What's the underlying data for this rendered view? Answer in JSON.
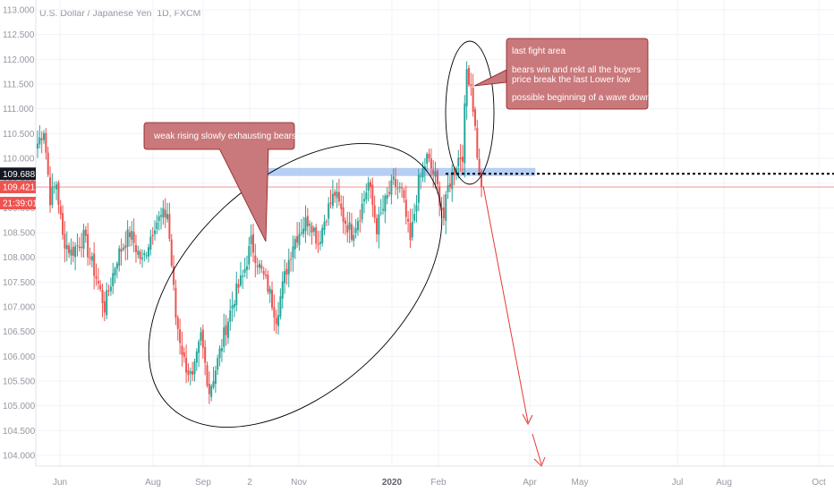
{
  "chart_title": "U.S. Dollar / Japanese Yen, 1D, FXCM",
  "price_badges": [
    {
      "label": "109.688",
      "bg": "#131722",
      "fg": "#ffffff"
    },
    {
      "label": "109.421",
      "bg": "#ef5350",
      "fg": "#ffffff"
    },
    {
      "label": "21:39:01",
      "bg": "#ef5350",
      "fg": "#ffffff"
    }
  ],
  "annotations": {
    "left_callout": "weak rising slowly exhausting bears",
    "right_callout": [
      "last fight area",
      "bears win and rekt all the buyers",
      "price break the last Lower low",
      "possible beginning of a wave down"
    ]
  },
  "colors": {
    "up": "#26a69a",
    "down": "#ef5350",
    "callout_fill": "#c9787b",
    "callout_stroke": "#8b1a1a",
    "zone": "#90b8f0",
    "arrow": "#e53935"
  },
  "chart_data": {
    "type": "candlestick",
    "title": "U.S. Dollar / Japanese Yen, 1D, FXCM",
    "y_ticks": [
      "104.000",
      "104.500",
      "105.000",
      "105.500",
      "106.000",
      "106.500",
      "107.000",
      "107.500",
      "108.000",
      "108.500",
      "109.000",
      "109.500",
      "110.000",
      "110.500",
      "111.000",
      "111.500",
      "112.000",
      "112.500",
      "113.000"
    ],
    "y_tick_values": [
      104.0,
      104.5,
      105.0,
      105.5,
      106.0,
      106.5,
      107.0,
      107.5,
      108.0,
      108.5,
      109.0,
      109.5,
      110.0,
      110.5,
      111.0,
      111.5,
      112.0,
      112.5,
      113.0
    ],
    "ylim": [
      103.7,
      113.3
    ],
    "x_ticks": [
      "Jun",
      "Aug",
      "Sep",
      "2",
      "Nov",
      "2020",
      "Feb",
      "Apr",
      "May",
      "Jul",
      "Aug",
      "Oct"
    ],
    "x_tick_bold": [
      false,
      false,
      false,
      false,
      false,
      true,
      false,
      false,
      false,
      false,
      false,
      false
    ],
    "last_close": 109.421,
    "horizontal_line": 109.688,
    "resistance_zone": [
      109.65,
      109.8
    ],
    "grid": true,
    "series_anchors": [
      {
        "i": 0,
        "v": 110.3
      },
      {
        "i": 3,
        "v": 110.6
      },
      {
        "i": 6,
        "v": 109.2
      },
      {
        "i": 9,
        "v": 109.5
      },
      {
        "i": 12,
        "v": 108.4
      },
      {
        "i": 16,
        "v": 108.1
      },
      {
        "i": 22,
        "v": 108.4
      },
      {
        "i": 28,
        "v": 107.6
      },
      {
        "i": 32,
        "v": 107.0
      },
      {
        "i": 38,
        "v": 108.0
      },
      {
        "i": 44,
        "v": 108.5
      },
      {
        "i": 50,
        "v": 107.9
      },
      {
        "i": 56,
        "v": 108.7
      },
      {
        "i": 62,
        "v": 108.9
      },
      {
        "i": 66,
        "v": 106.8
      },
      {
        "i": 70,
        "v": 105.9
      },
      {
        "i": 74,
        "v": 105.5
      },
      {
        "i": 78,
        "v": 106.4
      },
      {
        "i": 82,
        "v": 105.3
      },
      {
        "i": 86,
        "v": 105.9
      },
      {
        "i": 90,
        "v": 106.6
      },
      {
        "i": 94,
        "v": 107.2
      },
      {
        "i": 98,
        "v": 107.6
      },
      {
        "i": 102,
        "v": 108.3
      },
      {
        "i": 106,
        "v": 107.8
      },
      {
        "i": 110,
        "v": 107.4
      },
      {
        "i": 114,
        "v": 106.8
      },
      {
        "i": 118,
        "v": 107.6
      },
      {
        "i": 122,
        "v": 108.3
      },
      {
        "i": 126,
        "v": 108.6
      },
      {
        "i": 130,
        "v": 108.8
      },
      {
        "i": 134,
        "v": 108.3
      },
      {
        "i": 138,
        "v": 108.9
      },
      {
        "i": 142,
        "v": 109.3
      },
      {
        "i": 146,
        "v": 108.8
      },
      {
        "i": 150,
        "v": 108.5
      },
      {
        "i": 154,
        "v": 108.9
      },
      {
        "i": 158,
        "v": 109.5
      },
      {
        "i": 162,
        "v": 108.6
      },
      {
        "i": 166,
        "v": 109.1
      },
      {
        "i": 170,
        "v": 109.5
      },
      {
        "i": 174,
        "v": 109.3
      },
      {
        "i": 178,
        "v": 108.3
      },
      {
        "i": 182,
        "v": 109.5
      },
      {
        "i": 186,
        "v": 110.0
      },
      {
        "i": 190,
        "v": 109.6
      },
      {
        "i": 194,
        "v": 108.8
      },
      {
        "i": 196,
        "v": 109.4
      },
      {
        "i": 199,
        "v": 109.8
      },
      {
        "i": 201,
        "v": 110.0
      },
      {
        "i": 203,
        "v": 110.1
      },
      {
        "i": 205,
        "v": 111.8
      },
      {
        "i": 207,
        "v": 111.5
      },
      {
        "i": 209,
        "v": 110.6
      },
      {
        "i": 211,
        "v": 109.6
      },
      {
        "i": 212,
        "v": 109.4
      }
    ]
  }
}
